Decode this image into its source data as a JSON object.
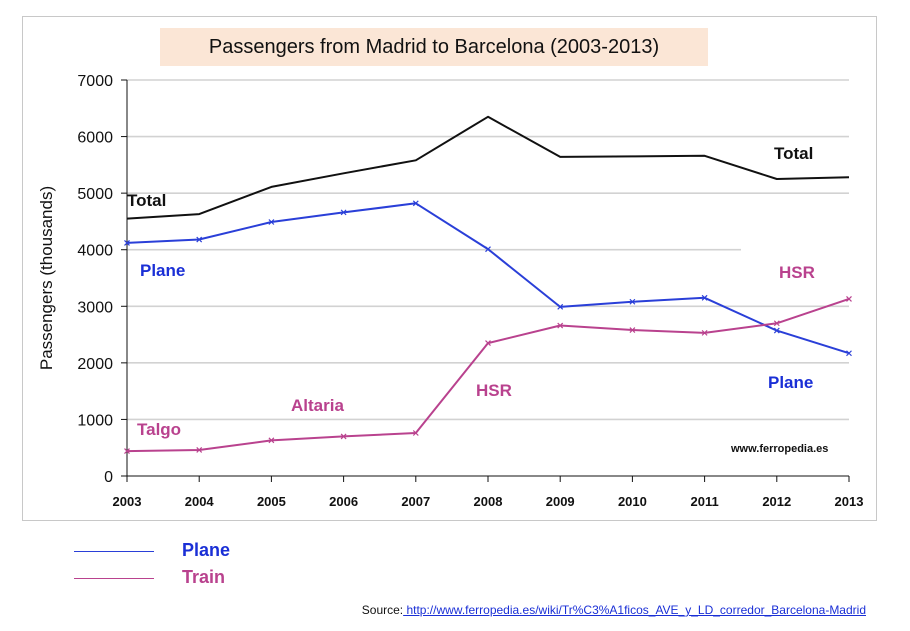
{
  "chart_data": {
    "type": "line",
    "title": "Passengers from Madrid to Barcelona (2003-2013)",
    "ylabel": "Passengers (thousands)",
    "xlabel": "",
    "ylim": [
      0,
      7000
    ],
    "yticks": [
      0,
      1000,
      2000,
      3000,
      4000,
      5000,
      6000,
      7000
    ],
    "categories": [
      "2003",
      "2004",
      "2005",
      "2006",
      "2007",
      "2008",
      "2009",
      "2010",
      "2011",
      "2012",
      "2013"
    ],
    "grid": true,
    "series": [
      {
        "name": "Total",
        "color": "#111111",
        "values": [
          4550,
          4630,
          5110,
          5350,
          5580,
          6350,
          5640,
          5650,
          5660,
          5250,
          5280
        ]
      },
      {
        "name": "Plane",
        "color": "#2a3fd8",
        "values": [
          4120,
          4180,
          4490,
          4660,
          4820,
          4010,
          2990,
          3080,
          3150,
          2570,
          2170
        ]
      },
      {
        "name": "Train",
        "color": "#b9428e",
        "values": [
          440,
          460,
          630,
          700,
          760,
          2350,
          2660,
          2580,
          2530,
          2700,
          3130
        ]
      }
    ],
    "annotations": [
      {
        "text": "Total",
        "color": "#111111"
      },
      {
        "text": "Total",
        "color": "#111111"
      },
      {
        "text": "Plane",
        "color": "#1a2fd6"
      },
      {
        "text": "Plane",
        "color": "#1a2fd6"
      },
      {
        "text": "HSR",
        "color": "#b9428e"
      },
      {
        "text": "HSR",
        "color": "#b9428e"
      },
      {
        "text": "Talgo",
        "color": "#b9428e"
      },
      {
        "text": "Altaria",
        "color": "#b9428e"
      }
    ],
    "watermark": "www.ferropedia.es"
  },
  "legend": [
    {
      "label": "Plane",
      "color": "#2a3fd8",
      "text_color": "#1a2fd6"
    },
    {
      "label": "Train",
      "color": "#b9428e",
      "text_color": "#b9428e"
    }
  ],
  "source": {
    "prefix": "Source:",
    "link_text": " http://www.ferropedia.es/wiki/Tr%C3%A1ficos_AVE_y_LD_corredor_Barcelona-Madrid"
  }
}
